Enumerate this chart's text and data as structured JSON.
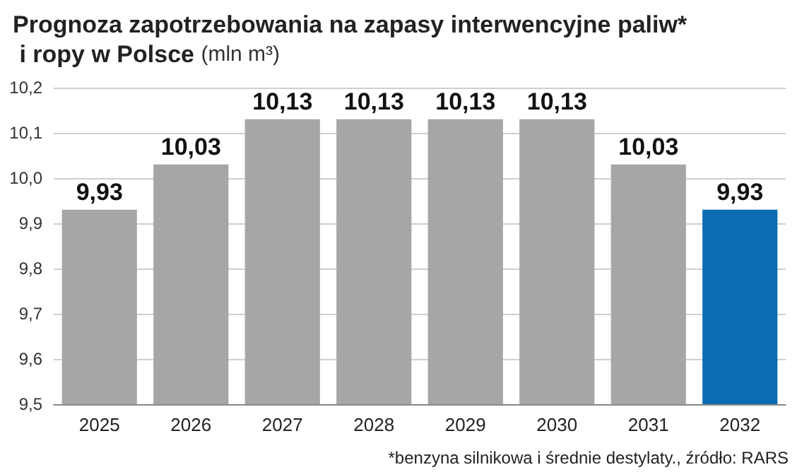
{
  "chart_data": {
    "type": "bar",
    "title": "Prognoza zapotrzebowania na zapasy interwencyjne paliw* i ropy w Polsce",
    "subtitle": "(mln m³)",
    "categories": [
      "2025",
      "2026",
      "2027",
      "2028",
      "2029",
      "2030",
      "2031",
      "2032"
    ],
    "values": [
      9.93,
      10.03,
      10.13,
      10.13,
      10.13,
      10.13,
      10.03,
      9.93
    ],
    "value_labels": [
      "9,93",
      "10,03",
      "10,13",
      "10,13",
      "10,13",
      "10,13",
      "10,03",
      "9,93"
    ],
    "colors": [
      "#a6a6a6",
      "#a6a6a6",
      "#a6a6a6",
      "#a6a6a6",
      "#a6a6a6",
      "#a6a6a6",
      "#a6a6a6",
      "#0a6db3"
    ],
    "ylim": [
      9.5,
      10.2
    ],
    "yticks": [
      {
        "value": 9.5,
        "label": "9,5"
      },
      {
        "value": 9.6,
        "label": "9,6"
      },
      {
        "value": 9.7,
        "label": "9,7"
      },
      {
        "value": 9.8,
        "label": "9,8"
      },
      {
        "value": 9.9,
        "label": "9,9"
      },
      {
        "value": 10.0,
        "label": "10,0"
      },
      {
        "value": 10.1,
        "label": "10,1"
      },
      {
        "value": 10.2,
        "label": "10,2"
      }
    ],
    "grid": "y",
    "annotations": [
      "*benzyna silnikowa i średnie destylaty., źródło: RARS"
    ]
  }
}
